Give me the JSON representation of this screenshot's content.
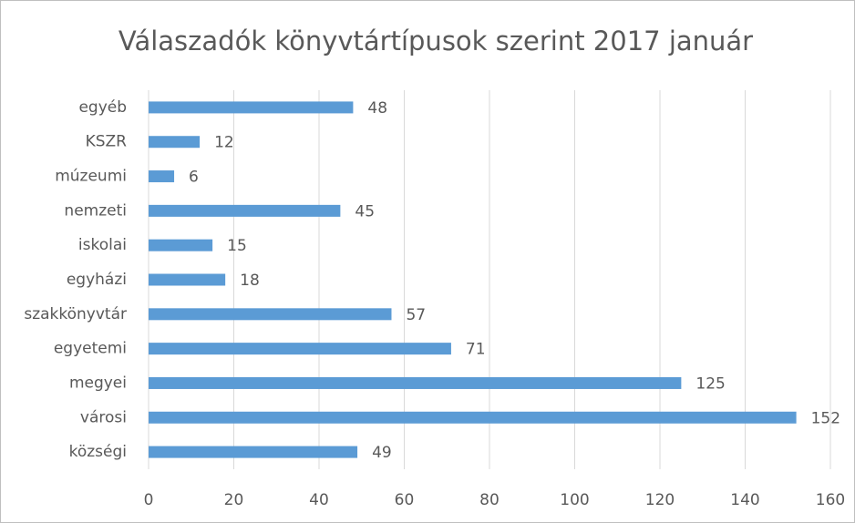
{
  "chart_data": {
    "type": "barh",
    "title": "Válaszadók könyvtártípusok szerint 2017 január",
    "categories": [
      "egyéb",
      "KSZR",
      "múzeumi",
      "nemzeti",
      "iskolai",
      "egyházi",
      "szakkönyvtár",
      "egyetemi",
      "megyei",
      "városi",
      "községi"
    ],
    "values": [
      48,
      12,
      6,
      45,
      15,
      18,
      57,
      71,
      125,
      152,
      49
    ],
    "color": "#5b9bd5",
    "xlim": [
      0,
      160
    ],
    "xticks": [
      0,
      20,
      40,
      60,
      80,
      100,
      120,
      140,
      160
    ],
    "grid": true
  }
}
